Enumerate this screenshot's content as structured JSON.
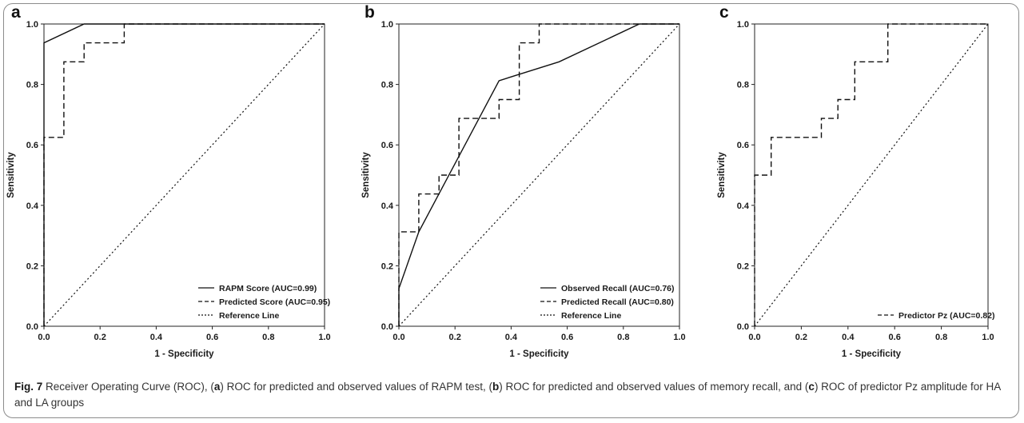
{
  "chart_data": [
    {
      "type": "line",
      "panel_label": "a",
      "xlabel": "1 - Specificity",
      "ylabel": "Sensitivity",
      "xlim": [
        0,
        1
      ],
      "ylim": [
        0,
        1
      ],
      "x_ticks": [
        "0.0",
        "0.2",
        "0.4",
        "0.6",
        "0.8",
        "1.0"
      ],
      "y_ticks": [
        "0.0",
        "0.2",
        "0.4",
        "0.6",
        "0.8",
        "1.0"
      ],
      "legend_position": "bottom-right",
      "series": [
        {
          "name": "RAPM Score (AUC=0.99)",
          "style": "solid",
          "x": [
            0,
            0,
            0.143,
            0.143,
            1.0
          ],
          "y": [
            0,
            0.9375,
            1.0,
            1.0,
            1.0
          ]
        },
        {
          "name": "Predicted Score (AUC=0.95)",
          "style": "dashed",
          "x": [
            0,
            0,
            0.071,
            0.071,
            0.143,
            0.143,
            0.286,
            0.286,
            1.0
          ],
          "y": [
            0,
            0.625,
            0.625,
            0.875,
            0.875,
            0.9375,
            0.9375,
            1.0,
            1.0
          ]
        },
        {
          "name": "Reference Line",
          "style": "dotted",
          "x": [
            0,
            1
          ],
          "y": [
            0,
            1
          ]
        }
      ]
    },
    {
      "type": "line",
      "panel_label": "b",
      "xlabel": "1 - Specificity",
      "ylabel": "Sensitivity",
      "xlim": [
        0,
        1
      ],
      "ylim": [
        0,
        1
      ],
      "x_ticks": [
        "0.0",
        "0.2",
        "0.4",
        "0.6",
        "0.8",
        "1.0"
      ],
      "y_ticks": [
        "0.0",
        "0.2",
        "0.4",
        "0.6",
        "0.8",
        "1.0"
      ],
      "legend_position": "bottom-right",
      "series": [
        {
          "name": "Observed Recall (AUC=0.76)",
          "style": "solid",
          "x": [
            0,
            0,
            0.071,
            0.214,
            0.357,
            0.571,
            0.857,
            1.0
          ],
          "y": [
            0,
            0.125,
            0.3125,
            0.5625,
            0.8125,
            0.875,
            1.0,
            1.0
          ]
        },
        {
          "name": "Predicted Recall (AUC=0.80)",
          "style": "dashed",
          "x": [
            0,
            0,
            0.071,
            0.071,
            0.143,
            0.143,
            0.214,
            0.214,
            0.357,
            0.357,
            0.429,
            0.429,
            0.5,
            0.5,
            1.0
          ],
          "y": [
            0,
            0.3125,
            0.3125,
            0.4375,
            0.4375,
            0.5,
            0.5,
            0.6875,
            0.6875,
            0.75,
            0.75,
            0.9375,
            0.9375,
            1.0,
            1.0
          ]
        },
        {
          "name": "Reference Line",
          "style": "dotted",
          "x": [
            0,
            1
          ],
          "y": [
            0,
            1
          ]
        }
      ]
    },
    {
      "type": "line",
      "panel_label": "c",
      "xlabel": "1 - Specificity",
      "ylabel": "Sensitivity",
      "xlim": [
        0,
        1
      ],
      "ylim": [
        0,
        1
      ],
      "x_ticks": [
        "0.0",
        "0.2",
        "0.4",
        "0.6",
        "0.8",
        "1.0"
      ],
      "y_ticks": [
        "0.0",
        "0.2",
        "0.4",
        "0.6",
        "0.8",
        "1.0"
      ],
      "legend_position": "bottom-right",
      "series": [
        {
          "name": "Predictor Pz (AUC=0.82)",
          "style": "dashed",
          "x": [
            0,
            0,
            0.071,
            0.071,
            0.286,
            0.286,
            0.357,
            0.357,
            0.429,
            0.429,
            0.571,
            0.571,
            1.0
          ],
          "y": [
            0,
            0.5,
            0.5,
            0.625,
            0.625,
            0.6875,
            0.6875,
            0.75,
            0.75,
            0.875,
            0.875,
            1.0,
            1.0
          ]
        },
        {
          "name": "",
          "style": "dotted",
          "x": [
            0,
            1
          ],
          "y": [
            0,
            1
          ]
        }
      ]
    }
  ],
  "caption": {
    "fig_label": "Fig. 7",
    "parts": [
      " Receiver Operating Curve (ROC), (",
      "a",
      ") ROC for predicted and observed values of RAPM test, (",
      "b",
      ") ROC for predicted and observed values of memory recall, and (",
      "c",
      ") ROC of predictor Pz amplitude for HA and LA groups"
    ]
  }
}
